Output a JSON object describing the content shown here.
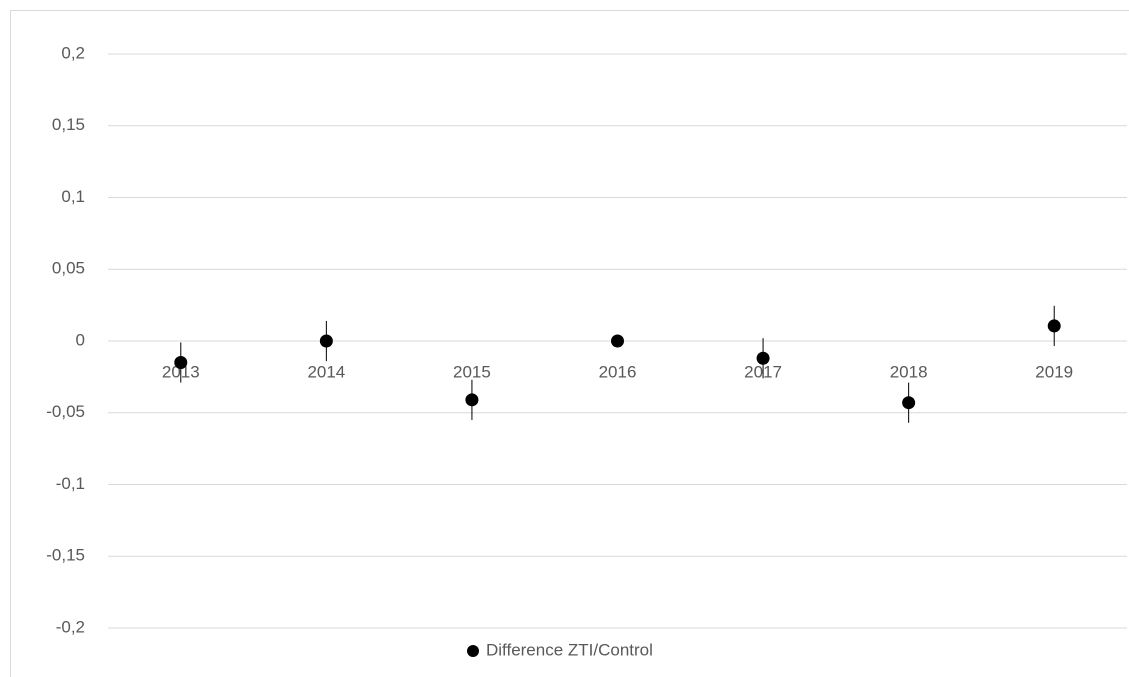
{
  "chart_data": {
    "type": "scatter",
    "categories": [
      "2013",
      "2014",
      "2015",
      "2016",
      "2017",
      "2018",
      "2019"
    ],
    "series": [
      {
        "name": "Difference ZTI/Control",
        "color": "#000000",
        "values": [
          -0.015,
          0,
          -0.041,
          0,
          -0.012,
          -0.043,
          0.0105
        ],
        "errors": [
          0.014,
          0.014,
          0.014,
          0,
          0.014,
          0.014,
          0.014
        ]
      }
    ],
    "ylim": [
      -0.2,
      0.2
    ],
    "yticks": [
      {
        "value": -0.2,
        "label": "-0,2"
      },
      {
        "value": -0.15,
        "label": "-0,15"
      },
      {
        "value": -0.1,
        "label": "-0,1"
      },
      {
        "value": -0.05,
        "label": "-0,05"
      },
      0,
      {
        "value": 0.05,
        "label": "0,05"
      },
      {
        "value": 0.1,
        "label": "0,1"
      },
      {
        "value": 0.15,
        "label": "0,15"
      },
      {
        "value": 0.2,
        "label": "0,2"
      }
    ],
    "grid": true,
    "legend": "bottom"
  }
}
